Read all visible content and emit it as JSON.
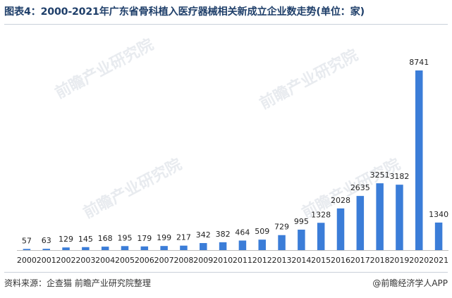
{
  "title": "图表4：2000-2021年广东省骨科植入医疗器械相关新成立企业数走势(单位：家)",
  "source": "资料来源：企查猫 前瞻产业研究院整理",
  "credit": "@前瞻经济学人APP",
  "colors": {
    "bar": "#3b7dd8",
    "axis": "#bfbfbf",
    "label": "#222222",
    "title": "#1f3f6a"
  },
  "chart_data": {
    "type": "bar",
    "categories": [
      "2000",
      "2001",
      "2002",
      "2003",
      "2004",
      "2005",
      "2006",
      "2007",
      "2008",
      "2009",
      "2010",
      "2011",
      "2012",
      "2013",
      "2014",
      "2015",
      "2016",
      "2017",
      "2018",
      "2019",
      "2020",
      "2021"
    ],
    "values": [
      57,
      63,
      129,
      145,
      168,
      195,
      179,
      199,
      217,
      342,
      382,
      464,
      509,
      729,
      995,
      1328,
      2028,
      2635,
      3251,
      3182,
      8741,
      1340
    ],
    "title": "图表4：2000-2021年广东省骨科植入医疗器械相关新成立企业数走势(单位：家)",
    "xlabel": "",
    "ylabel": "",
    "ylim": [
      0,
      8741
    ],
    "grid": false,
    "legend": "none"
  }
}
